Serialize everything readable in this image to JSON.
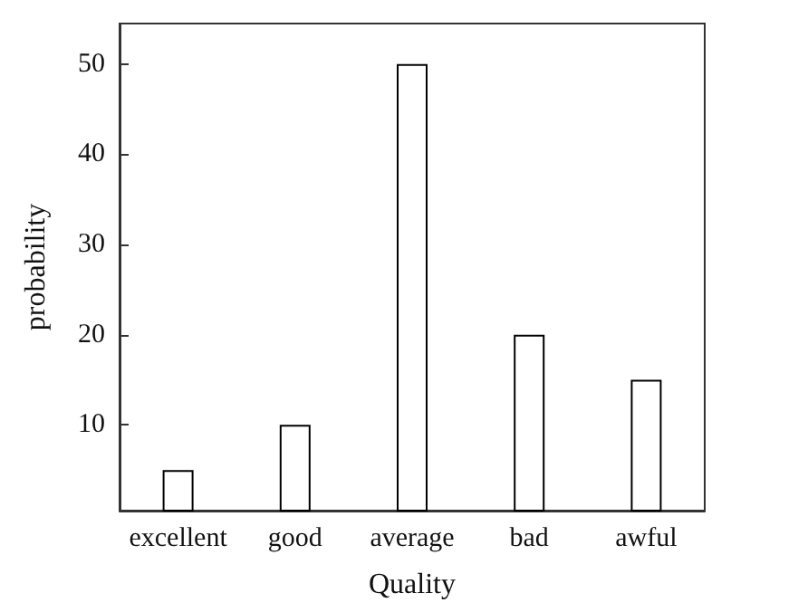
{
  "chart_data": {
    "type": "bar",
    "xlabel": "Quality",
    "ylabel": "probability",
    "categories": [
      "excellent",
      "good",
      "average",
      "bad",
      "awful"
    ],
    "values": [
      5,
      10,
      50,
      20,
      15
    ],
    "color": "#ffffff",
    "ylim": [
      0.5,
      54.5
    ],
    "yticks": [
      10,
      20,
      30,
      40,
      50
    ],
    "grid": false
  }
}
